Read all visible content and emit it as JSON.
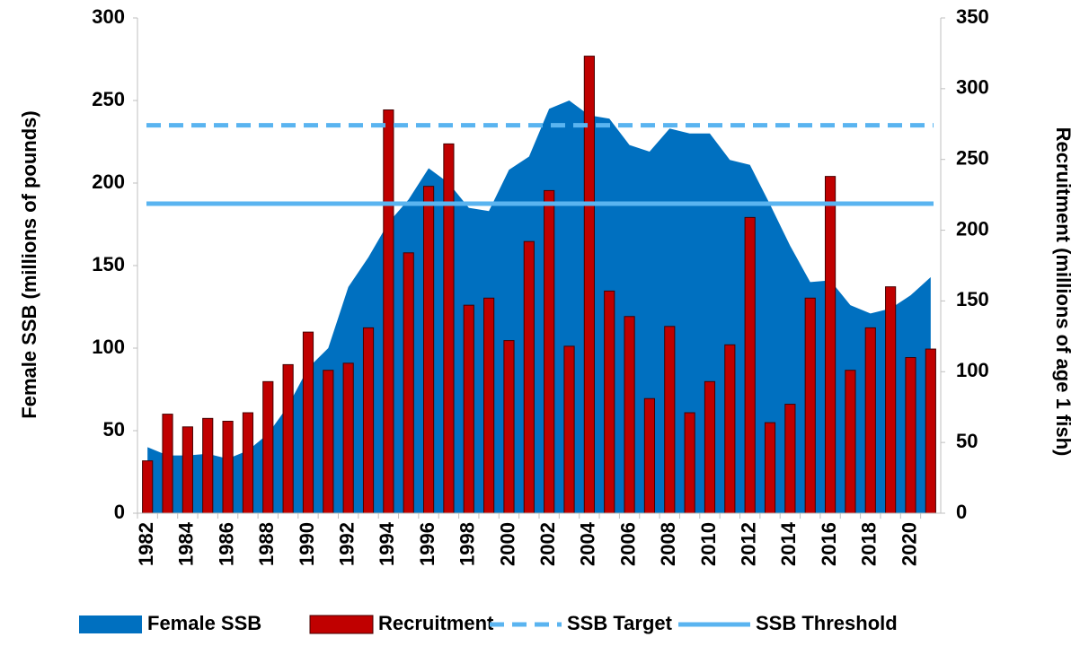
{
  "chart_data": {
    "type": "combo",
    "y_label": "Female SSB (millions of pounds)",
    "y2_label": "Recruitment (millions of age 1 fish)",
    "categories": [
      "1982",
      null,
      "1984",
      null,
      "1986",
      null,
      "1988",
      null,
      "1990",
      null,
      "1992",
      null,
      "1994",
      null,
      "1996",
      null,
      "1998",
      null,
      "2000",
      null,
      "2002",
      null,
      "2004",
      null,
      "2006",
      null,
      "2008",
      null,
      "2010",
      null,
      "2012",
      null,
      "2014",
      null,
      "2016",
      null,
      "2018",
      null,
      "2020",
      null
    ],
    "ylim": [
      0,
      300
    ],
    "yticks": [
      0,
      50,
      100,
      150,
      200,
      250,
      300
    ],
    "y2lim": [
      0,
      350
    ],
    "y2ticks": [
      0,
      50,
      100,
      150,
      200,
      250,
      300,
      350
    ],
    "series": [
      {
        "name": "Female SSB",
        "type": "area",
        "color": "#0070c0",
        "values": [
          40,
          35,
          35,
          36,
          33,
          38,
          48,
          65,
          88,
          100,
          137,
          155,
          176,
          190,
          209,
          200,
          185,
          183,
          208,
          216,
          245,
          250,
          241,
          239,
          223,
          219,
          233,
          230,
          230,
          214,
          211,
          187,
          162,
          140,
          141,
          126,
          121,
          124,
          132,
          143
        ]
      },
      {
        "name": "Recruitment",
        "type": "bar",
        "axis": "y2",
        "color": "#c00000",
        "values": [
          37,
          70,
          61,
          67,
          65,
          71,
          93,
          105,
          128,
          101,
          106,
          131,
          285,
          184,
          231,
          261,
          147,
          152,
          122,
          192,
          228,
          118,
          323,
          157,
          139,
          81,
          132,
          71,
          93,
          119,
          209,
          64,
          77,
          152,
          238,
          101,
          131,
          160,
          110,
          116
        ]
      },
      {
        "name": "SSB Target",
        "type": "hline",
        "dashed": true,
        "color": "#5ab4f0",
        "value": 235
      },
      {
        "name": "SSB Threshold",
        "type": "hline",
        "dashed": false,
        "color": "#5ab4f0",
        "value": 187.5
      }
    ]
  }
}
